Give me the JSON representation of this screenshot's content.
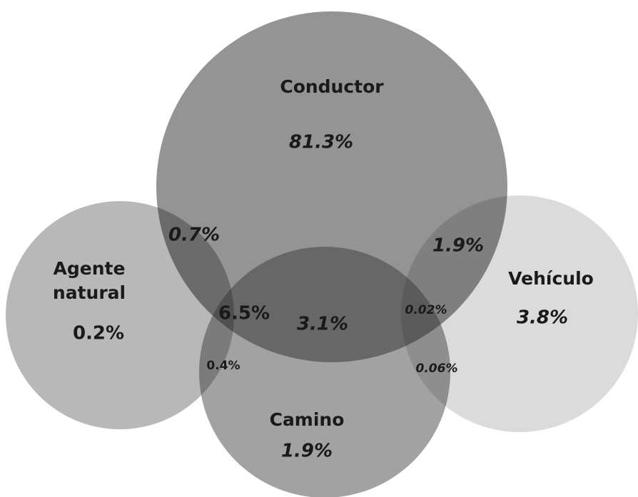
{
  "sets": [
    {
      "label": "Conductor",
      "value": "81.3%"
    },
    {
      "label": "Agente natural",
      "label_lines": [
        "Agente",
        "natural"
      ],
      "value": "0.2%"
    },
    {
      "label": "Vehículo",
      "value": "3.8%"
    },
    {
      "label": "Camino",
      "value": "1.9%"
    }
  ],
  "intersections": [
    {
      "sets": [
        "Conductor",
        "Agente natural"
      ],
      "value": "0.7%"
    },
    {
      "sets": [
        "Conductor",
        "Vehículo"
      ],
      "value": "1.9%"
    },
    {
      "sets": [
        "Conductor",
        "Camino",
        "Agente natural"
      ],
      "value": "6.5%"
    },
    {
      "sets": [
        "Conductor",
        "Camino"
      ],
      "value": "3.1%"
    },
    {
      "sets": [
        "Conductor",
        "Camino",
        "Vehículo"
      ],
      "value": "0.02%"
    },
    {
      "sets": [
        "Camino",
        "Agente natural"
      ],
      "value": "0.4%"
    },
    {
      "sets": [
        "Camino",
        "Vehículo"
      ],
      "value": "0.06%"
    }
  ]
}
